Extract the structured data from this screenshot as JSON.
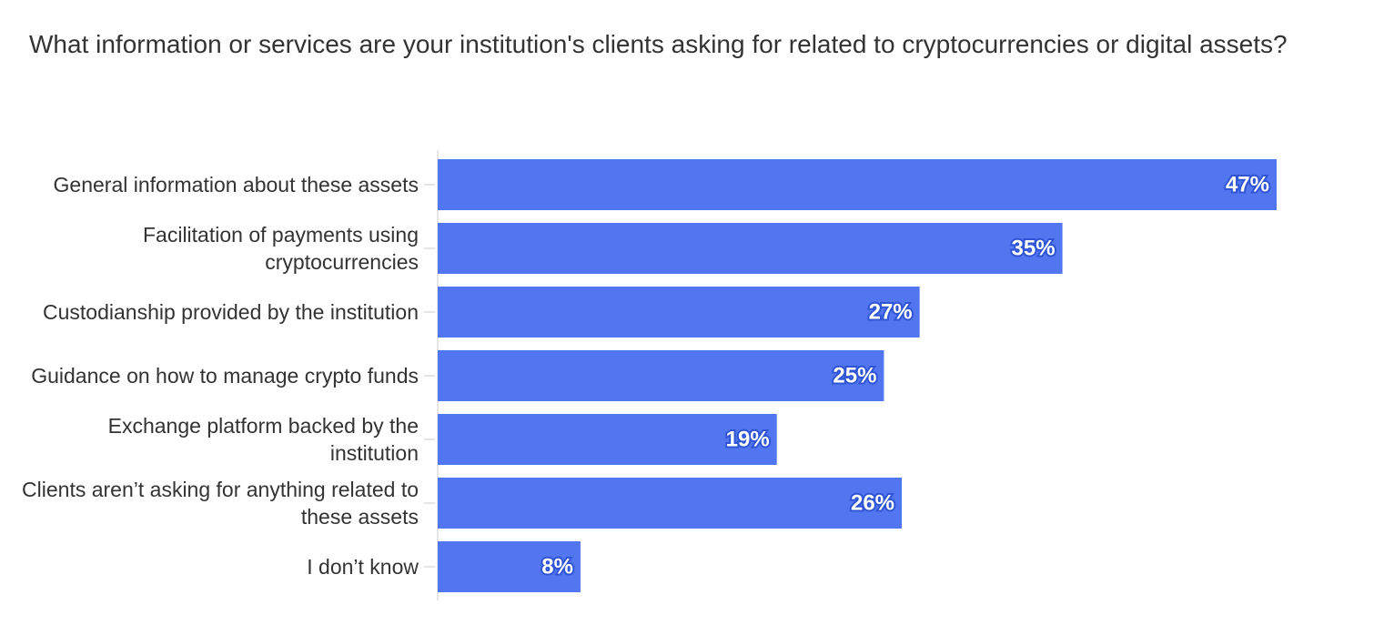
{
  "chart_data": {
    "type": "bar",
    "orientation": "horizontal",
    "title": "What information or services are your institution's clients asking for related to cryptocurrencies or digital assets?",
    "categories": [
      "General information about these assets",
      "Facilitation of payments using cryptocurrencies",
      "Custodianship provided by the institution",
      "Guidance on how to manage crypto funds",
      "Exchange platform backed by the institution",
      "Clients aren’t asking for anything related to these assets",
      "I don’t know"
    ],
    "values": [
      47,
      35,
      27,
      25,
      19,
      26,
      8
    ],
    "value_labels": [
      "47%",
      "35%",
      "27%",
      "25%",
      "19%",
      "26%",
      "8%"
    ],
    "color": "#5276ef"
  }
}
